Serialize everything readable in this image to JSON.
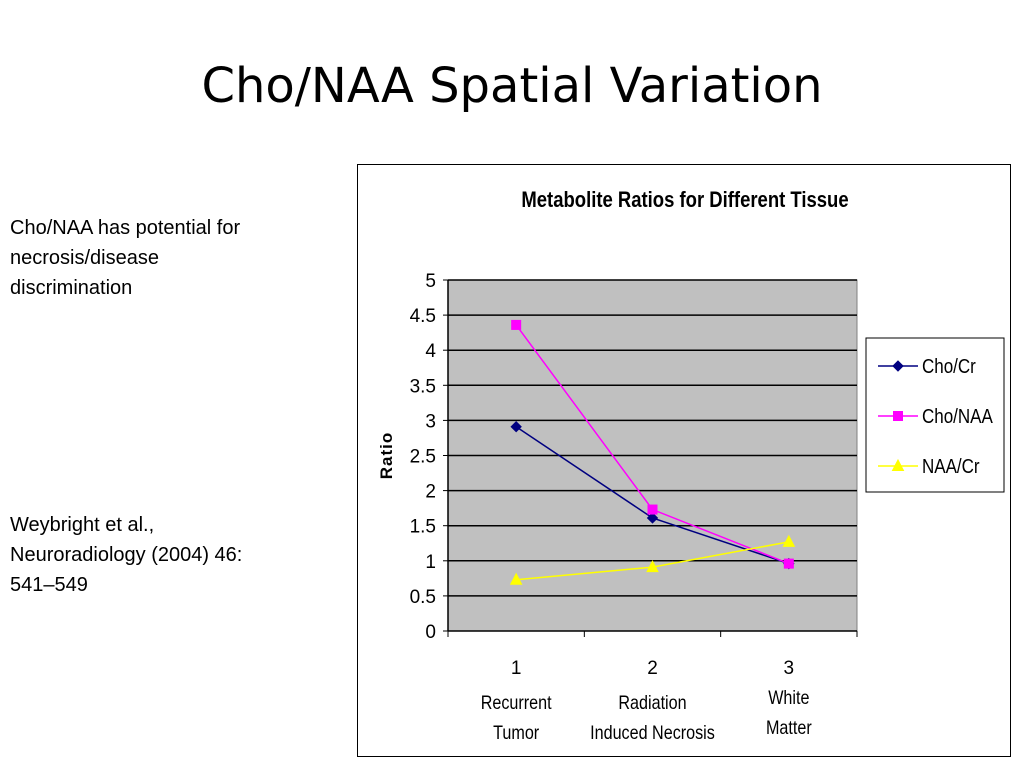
{
  "slide": {
    "title": "Cho/NAA Spatial Variation",
    "note": "Cho/NAA has potential for\nnecrosis/disease\ndiscrimination",
    "citation": "Weybright et al.,\nNeuroradiology (2004) 46:\n541–549"
  },
  "chart_data": {
    "type": "line",
    "title": "Metabolite Ratios for Different Tissue",
    "xlabel": "",
    "ylabel": "Ratio",
    "categories": [
      "1",
      "2",
      "3"
    ],
    "category_names": [
      [
        "Recurrent",
        "Tumor"
      ],
      [
        "Radiation",
        "Induced Necrosis"
      ],
      [
        "White",
        "Matter"
      ]
    ],
    "ylim": [
      0,
      5
    ],
    "yticks": [
      "0",
      "0.5",
      "1",
      "1.5",
      "2",
      "2.5",
      "3",
      "3.5",
      "4",
      "4.5",
      "5"
    ],
    "grid": "horizontal",
    "legend": "right",
    "plot_background": "#c0c0c0",
    "series": [
      {
        "name": "Cho/Cr",
        "values": [
          2.91,
          1.61,
          0.96
        ],
        "color": "#000080",
        "marker": "diamond"
      },
      {
        "name": "Cho/NAA",
        "values": [
          4.36,
          1.73,
          0.96
        ],
        "color": "#ff00ff",
        "marker": "square"
      },
      {
        "name": "NAA/Cr",
        "values": [
          0.73,
          0.91,
          1.27
        ],
        "color": "#ffff00",
        "marker": "triangle"
      }
    ]
  }
}
